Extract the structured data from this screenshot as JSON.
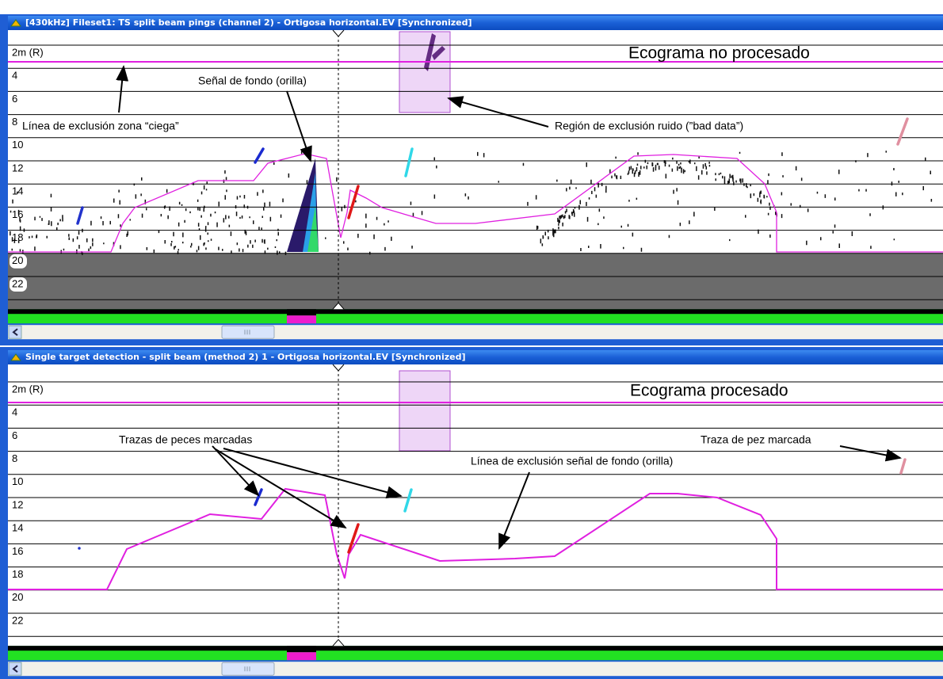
{
  "windows": [
    {
      "title": "[430kHz] Fileset1: TS split beam pings (channel 2) - Ortigosa horizontal.EV [Synchronized]",
      "depth_labels": [
        "2m (R)",
        "4",
        "6",
        "8",
        "10",
        "12",
        "14",
        "16",
        "18",
        "20",
        "22"
      ],
      "annotations": [
        "Ecograma no procesado",
        "Señal de fondo (orilla)",
        "Línea de exclusión zona “ciega”",
        "Región de exclusión ruido (”bad data”)"
      ]
    },
    {
      "title": "Single target detection - split beam (method 2) 1 - Ortigosa horizontal.EV [Synchronized]",
      "depth_labels": [
        "2m (R)",
        "4",
        "6",
        "8",
        "10",
        "12",
        "14",
        "16",
        "18",
        "20",
        "22"
      ],
      "annotations": [
        "Ecograma procesado",
        "Trazas de peces marcadas",
        "Traza de pez marcada",
        "Línea de exclusión señal de fondo (orilla)"
      ]
    }
  ]
}
